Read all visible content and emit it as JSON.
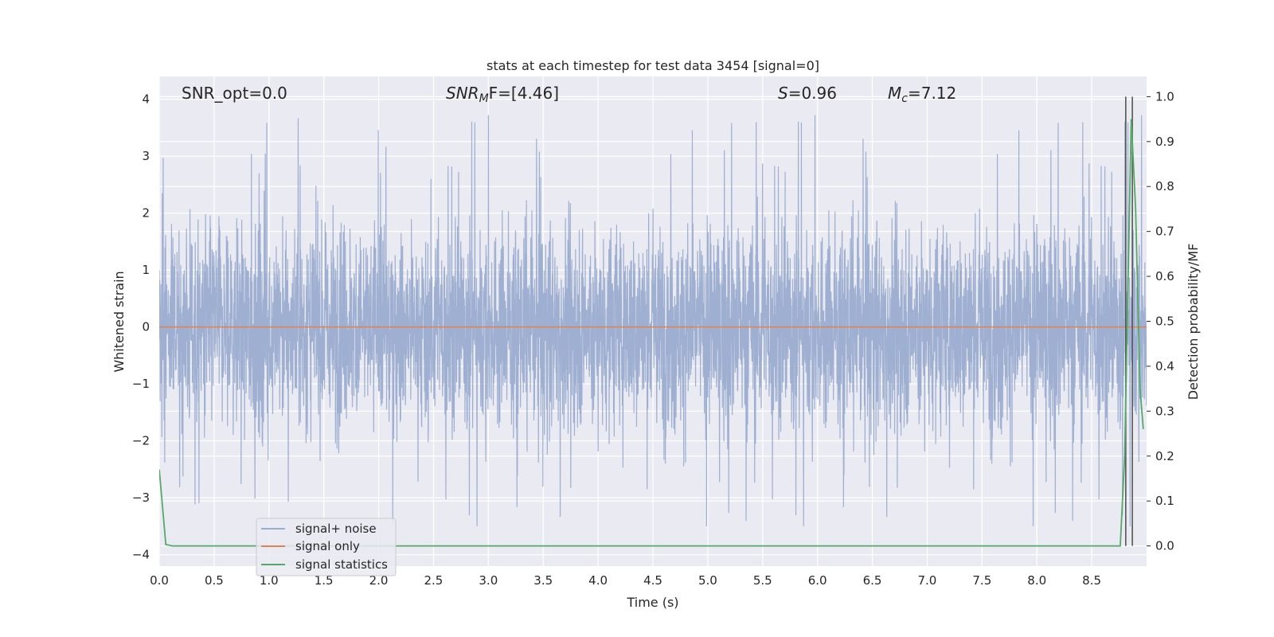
{
  "chart_data": {
    "type": "line",
    "title": "stats at each timestep for test data 3454 [signal=0]",
    "xlabel": "Time (s)",
    "ylabel_left": "Whitened strain",
    "ylabel_right": "Detection probability/MF",
    "xlim": [
      0.0,
      9.0
    ],
    "ylim_left": [
      -4.2,
      4.4
    ],
    "ylim_right": [
      -0.045,
      1.045
    ],
    "x_ticks": [
      0.0,
      0.5,
      1.0,
      1.5,
      2.0,
      2.5,
      3.0,
      3.5,
      4.0,
      4.5,
      5.0,
      5.5,
      6.0,
      6.5,
      7.0,
      7.5,
      8.0,
      8.5
    ],
    "x_tick_labels": [
      "0.0",
      "0.5",
      "1.0",
      "1.5",
      "2.0",
      "2.5",
      "3.0",
      "3.5",
      "4.0",
      "4.5",
      "5.0",
      "5.5",
      "6.0",
      "6.5",
      "7.0",
      "7.5",
      "8.0",
      "8.5"
    ],
    "y_left_ticks": [
      4,
      3,
      2,
      1,
      0,
      -1,
      -2,
      -3,
      -4
    ],
    "y_left_tick_labels": [
      "4",
      "3",
      "2",
      "1",
      "0",
      "−1",
      "−2",
      "−3",
      "−4"
    ],
    "y_right_ticks": [
      1.0,
      0.9,
      0.8,
      0.7,
      0.6,
      0.5,
      0.4,
      0.3,
      0.2,
      0.1,
      0.0
    ],
    "y_right_tick_labels": [
      "1.0",
      "0.9",
      "0.8",
      "0.7",
      "0.6",
      "0.5",
      "0.4",
      "0.3",
      "0.2",
      "0.1",
      "0.0"
    ],
    "grid": true,
    "legend_position": "bottom-left",
    "annotations": {
      "snr_opt": "SNR_opt=0.0",
      "snr_mf_base": "SNR",
      "snr_mf_sub": "M",
      "snr_mf_rest": "F=[4.46]",
      "s_var": "S",
      "s_rest": "=0.96",
      "mc_base": "M",
      "mc_sub": "c",
      "mc_rest": "=7.12"
    },
    "series": [
      {
        "name": "signal+ noise",
        "color": "#9aaccf",
        "axis": "left",
        "kind": "noise",
        "amplitude_range": [
          -3.5,
          4.0
        ]
      },
      {
        "name": "signal only",
        "color": "#dd8452",
        "axis": "left",
        "x": [
          0.0,
          9.0
        ],
        "y": [
          0.0,
          0.0
        ]
      },
      {
        "name": "signal statistics",
        "color": "#55a868",
        "axis": "right",
        "x": [
          0.0,
          0.06,
          0.12,
          0.5,
          1.0,
          2.0,
          3.0,
          4.0,
          5.0,
          6.0,
          7.0,
          8.0,
          8.7,
          8.76,
          8.8,
          8.86,
          8.9,
          8.94,
          8.97
        ],
        "y": [
          0.17,
          0.003,
          0.0,
          0.0,
          0.0,
          0.0,
          0.0,
          0.0,
          0.0,
          0.0,
          0.0,
          0.0,
          0.0,
          0.0,
          0.2,
          0.95,
          0.75,
          0.35,
          0.26
        ]
      }
    ],
    "vertical_lines": {
      "color": "#555555",
      "x": [
        8.81,
        8.87
      ],
      "y_range": [
        0.0,
        1.0
      ]
    }
  }
}
